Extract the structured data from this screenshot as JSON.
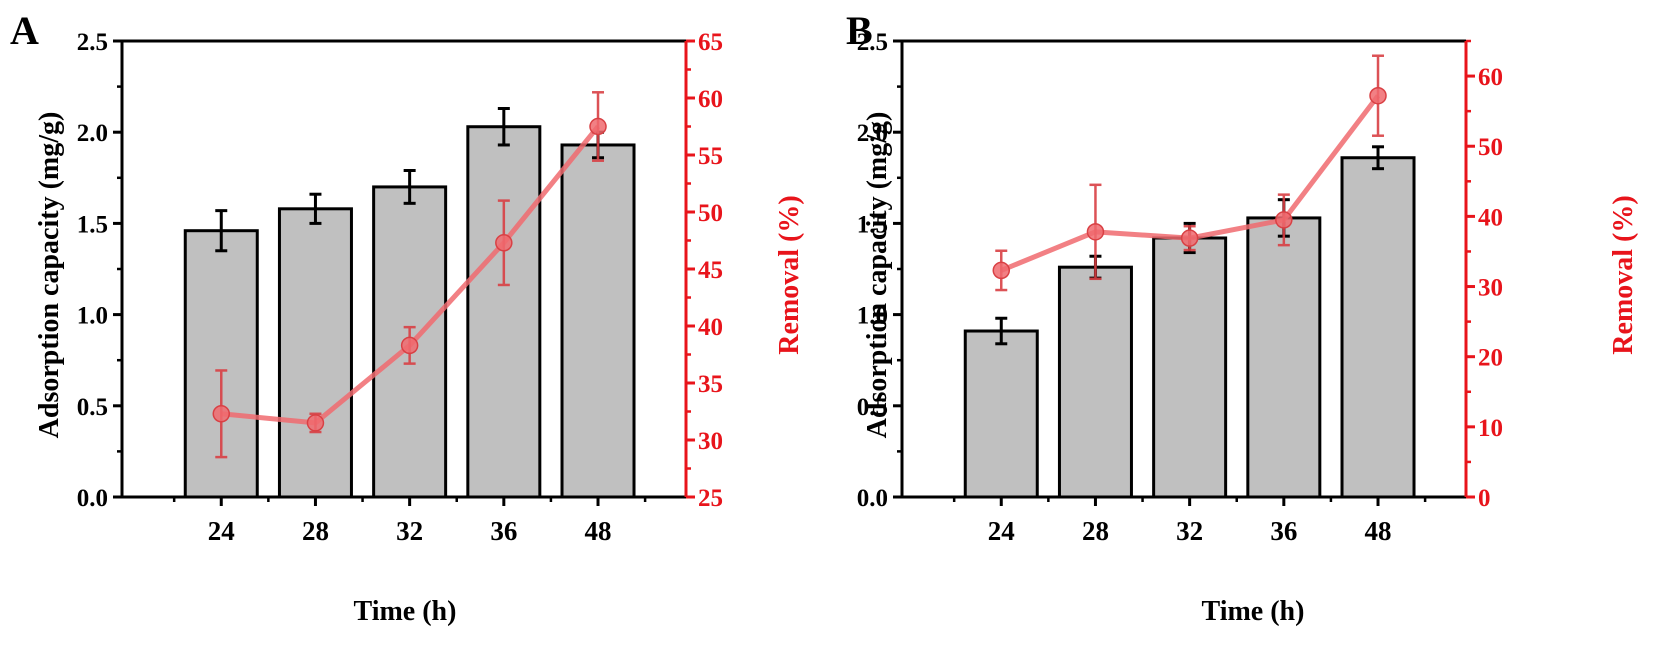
{
  "colors": {
    "bar_fill": "#c0c0c0",
    "bar_stroke": "#000000",
    "line": "#f06a6e",
    "marker": "#f06a6e",
    "marker_stroke": "#d94044",
    "right_axis": "#e8141b"
  },
  "chart_data": [
    {
      "panel": "A",
      "type": "bar",
      "categories": [
        "24",
        "28",
        "32",
        "36",
        "48"
      ],
      "xlabel": "Time (h)",
      "ylabel": "Adsorption capacity (mg/g)",
      "ylim": [
        0,
        2.5
      ],
      "yticks": [
        "0.0",
        "0.5",
        "1.0",
        "1.5",
        "2.0",
        "2.5"
      ],
      "series": [
        {
          "name": "Adsorption capacity",
          "type": "bar",
          "axis": "left",
          "values": [
            1.46,
            1.58,
            1.7,
            2.03,
            1.93
          ],
          "errors": [
            0.11,
            0.08,
            0.09,
            0.1,
            0.07
          ]
        },
        {
          "name": "Removal",
          "type": "line",
          "axis": "right",
          "values": [
            32.3,
            31.5,
            38.3,
            47.3,
            57.5
          ],
          "errors": [
            3.8,
            0.8,
            1.6,
            3.7,
            3.0
          ]
        }
      ],
      "y2label": "Removal (%)",
      "y2lim": [
        25,
        65
      ],
      "y2ticks": [
        "25",
        "30",
        "35",
        "40",
        "45",
        "50",
        "55",
        "60",
        "65"
      ]
    },
    {
      "panel": "B",
      "type": "bar",
      "categories": [
        "24",
        "28",
        "32",
        "36",
        "48"
      ],
      "xlabel": "Time (h)",
      "ylabel": "Adsorption capacity (mg/g)",
      "ylim": [
        0,
        2.5
      ],
      "yticks": [
        "0.0",
        "0.5",
        "1.0",
        "1.5",
        "2.0",
        "2.5"
      ],
      "series": [
        {
          "name": "Adsorption capacity",
          "type": "bar",
          "axis": "left",
          "values": [
            0.91,
            1.26,
            1.42,
            1.53,
            1.86
          ],
          "errors": [
            0.07,
            0.06,
            0.08,
            0.1,
            0.06
          ]
        },
        {
          "name": "Removal",
          "type": "line",
          "axis": "right",
          "values": [
            32.3,
            37.8,
            36.9,
            39.5,
            57.2
          ],
          "errors": [
            2.8,
            6.7,
            1.7,
            3.6,
            5.7
          ]
        }
      ],
      "y2label": "Removal (%)",
      "y2lim": [
        0,
        65
      ],
      "y2ticks": [
        "0",
        "10",
        "20",
        "30",
        "40",
        "50",
        "60"
      ]
    }
  ]
}
